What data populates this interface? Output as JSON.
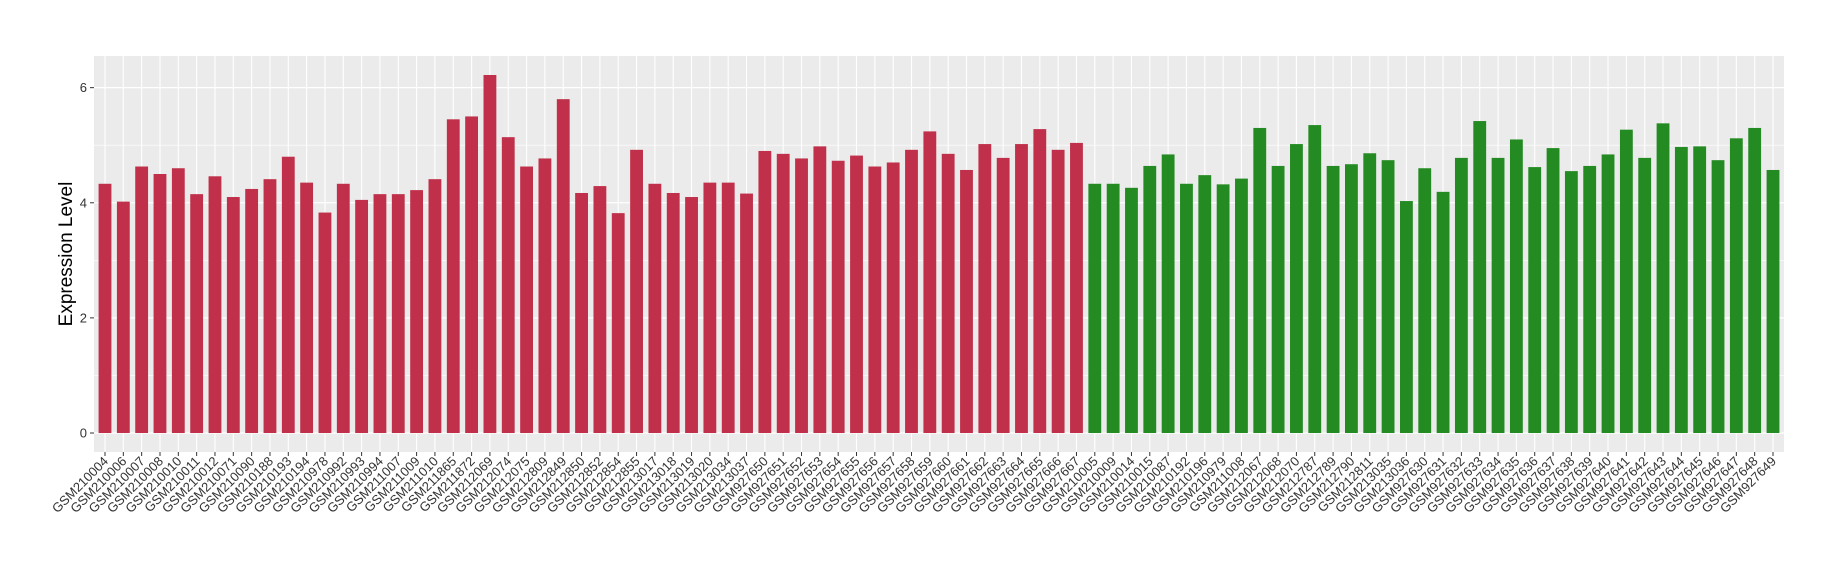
{
  "chart_data": {
    "type": "bar",
    "y_label": "Expression Level",
    "categories": [
      "GSM210004",
      "GSM210006",
      "GSM210007",
      "GSM210008",
      "GSM210010",
      "GSM210011",
      "GSM210012",
      "GSM210071",
      "GSM210090",
      "GSM210188",
      "GSM210193",
      "GSM210194",
      "GSM210978",
      "GSM210992",
      "GSM210993",
      "GSM210994",
      "GSM211007",
      "GSM211009",
      "GSM211010",
      "GSM211865",
      "GSM211872",
      "GSM212069",
      "GSM212074",
      "GSM212075",
      "GSM212809",
      "GSM212849",
      "GSM212850",
      "GSM212852",
      "GSM212854",
      "GSM212855",
      "GSM213017",
      "GSM213018",
      "GSM213019",
      "GSM213020",
      "GSM213034",
      "GSM213037",
      "GSM927650",
      "GSM927651",
      "GSM927652",
      "GSM927653",
      "GSM927654",
      "GSM927655",
      "GSM927656",
      "GSM927657",
      "GSM927658",
      "GSM927659",
      "GSM927660",
      "GSM927661",
      "GSM927662",
      "GSM927663",
      "GSM927664",
      "GSM927665",
      "GSM927666",
      "GSM927667",
      "GSM210005",
      "GSM210009",
      "GSM210014",
      "GSM210015",
      "GSM210087",
      "GSM210192",
      "GSM210196",
      "GSM210979",
      "GSM211008",
      "GSM212067",
      "GSM212068",
      "GSM212070",
      "GSM212787",
      "GSM212789",
      "GSM212790",
      "GSM212811",
      "GSM213035",
      "GSM213036",
      "GSM927630",
      "GSM927631",
      "GSM927632",
      "GSM927633",
      "GSM927634",
      "GSM927635",
      "GSM927636",
      "GSM927637",
      "GSM927638",
      "GSM927639",
      "GSM927640",
      "GSM927641",
      "GSM927642",
      "GSM927643",
      "GSM927644",
      "GSM927645",
      "GSM927646",
      "GSM927647",
      "GSM927648",
      "GSM927649"
    ],
    "series": [
      {
        "color": "#c0304a",
        "values": [
          4.33,
          4.02,
          4.63,
          4.5,
          4.6,
          4.15,
          4.46,
          4.1,
          4.24,
          4.41,
          4.8,
          4.35,
          3.83,
          4.33,
          4.05,
          4.15,
          4.15,
          4.22,
          4.41,
          5.45,
          5.5,
          6.22,
          5.14,
          4.63,
          4.77,
          5.8,
          4.17,
          4.29,
          3.82,
          4.92,
          4.33,
          4.17,
          4.1,
          4.35,
          4.35,
          4.16,
          4.9,
          4.85,
          4.77,
          4.98,
          4.73,
          4.82,
          4.63,
          4.7,
          4.92,
          5.24,
          4.85,
          4.57,
          5.02,
          4.78,
          5.02,
          5.28,
          4.92,
          5.04,
          null,
          null,
          null,
          null,
          null,
          null,
          null,
          null,
          null,
          null,
          null,
          null,
          null,
          null,
          null,
          null,
          null,
          null,
          null,
          null,
          null,
          null,
          null,
          null,
          null,
          null,
          null,
          null,
          null,
          null,
          null,
          null,
          null,
          null,
          null,
          null,
          null,
          null
        ]
      },
      {
        "color": "#238b22",
        "values": [
          null,
          null,
          null,
          null,
          null,
          null,
          null,
          null,
          null,
          null,
          null,
          null,
          null,
          null,
          null,
          null,
          null,
          null,
          null,
          null,
          null,
          null,
          null,
          null,
          null,
          null,
          null,
          null,
          null,
          null,
          null,
          null,
          null,
          null,
          null,
          null,
          null,
          null,
          null,
          null,
          null,
          null,
          null,
          null,
          null,
          null,
          null,
          null,
          null,
          null,
          null,
          null,
          null,
          null,
          4.33,
          4.33,
          4.26,
          4.64,
          4.84,
          4.33,
          4.48,
          4.32,
          4.42,
          5.3,
          4.64,
          5.02,
          5.35,
          4.64,
          4.67,
          4.86,
          4.74,
          4.03,
          4.6,
          4.19,
          4.78,
          5.42,
          4.78,
          5.1,
          4.62,
          4.95,
          4.55,
          4.64,
          4.84,
          5.27,
          4.78,
          5.38,
          4.97,
          4.98,
          4.74,
          5.12,
          5.3,
          4.57
        ]
      }
    ],
    "ylim": [
      -0.33,
      6.55
    ],
    "yticks": [
      0,
      2,
      4,
      6
    ],
    "grid": true
  }
}
